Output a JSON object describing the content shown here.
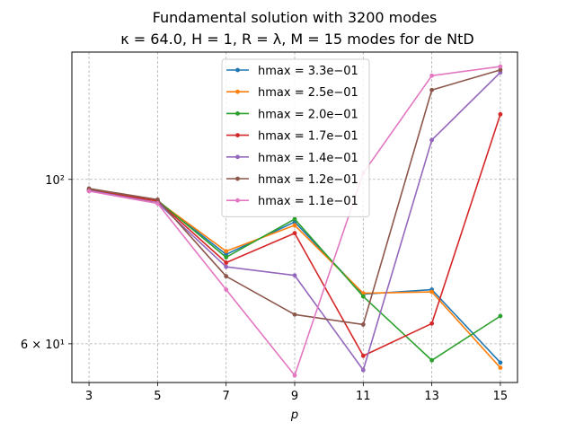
{
  "chart_data": {
    "type": "line",
    "title": "Fundamental solution with 3200 modes",
    "subtitle": "κ = 64.0, H = 1, R = λ, M = 15 modes for de NtD",
    "xlabel": "p",
    "ylabel": "",
    "yscale": "log",
    "xlim": [
      2.5,
      15.5
    ],
    "ylim": [
      53.2,
      148.5
    ],
    "xticks": [
      3,
      5,
      7,
      9,
      11,
      13,
      15
    ],
    "yticks": [
      {
        "value": 60,
        "label": "6 × 10¹"
      },
      {
        "value": 100,
        "label": "10²"
      }
    ],
    "grid": true,
    "legend_position": "top-center",
    "x": [
      3,
      5,
      7,
      9,
      11,
      13,
      15
    ],
    "series": [
      {
        "name": "hmax = 3.3e−01",
        "color": "#1f77b4",
        "values": [
          96.8,
          93.6,
          79.2,
          87.6,
          70.0,
          71.0,
          56.6
        ]
      },
      {
        "name": "hmax = 2.5e−01",
        "color": "#ff7f0e",
        "values": [
          96.6,
          93.5,
          80.0,
          86.7,
          70.2,
          70.5,
          55.7
        ]
      },
      {
        "name": "hmax = 2.0e−01",
        "color": "#2ca02c",
        "values": [
          96.9,
          93.7,
          78.5,
          88.4,
          69.5,
          57.0,
          65.4
        ]
      },
      {
        "name": "hmax = 1.7e−01",
        "color": "#d62728",
        "values": [
          96.7,
          93.5,
          77.2,
          84.6,
          57.8,
          63.9,
          122.4
        ]
      },
      {
        "name": "hmax = 1.4e−01",
        "color": "#9467bd",
        "values": [
          96.6,
          93.0,
          76.2,
          74.2,
          55.3,
          113.0,
          139.4
        ]
      },
      {
        "name": "hmax = 1.2e−01",
        "color": "#8c564b",
        "values": [
          97.2,
          93.9,
          74.0,
          65.7,
          63.7,
          132.0,
          140.5
        ]
      },
      {
        "name": "hmax = 1.1e−01",
        "color": "#e377c2",
        "values": [
          96.4,
          92.8,
          71.0,
          54.4,
          102.0,
          138.0,
          142.0
        ]
      }
    ]
  }
}
